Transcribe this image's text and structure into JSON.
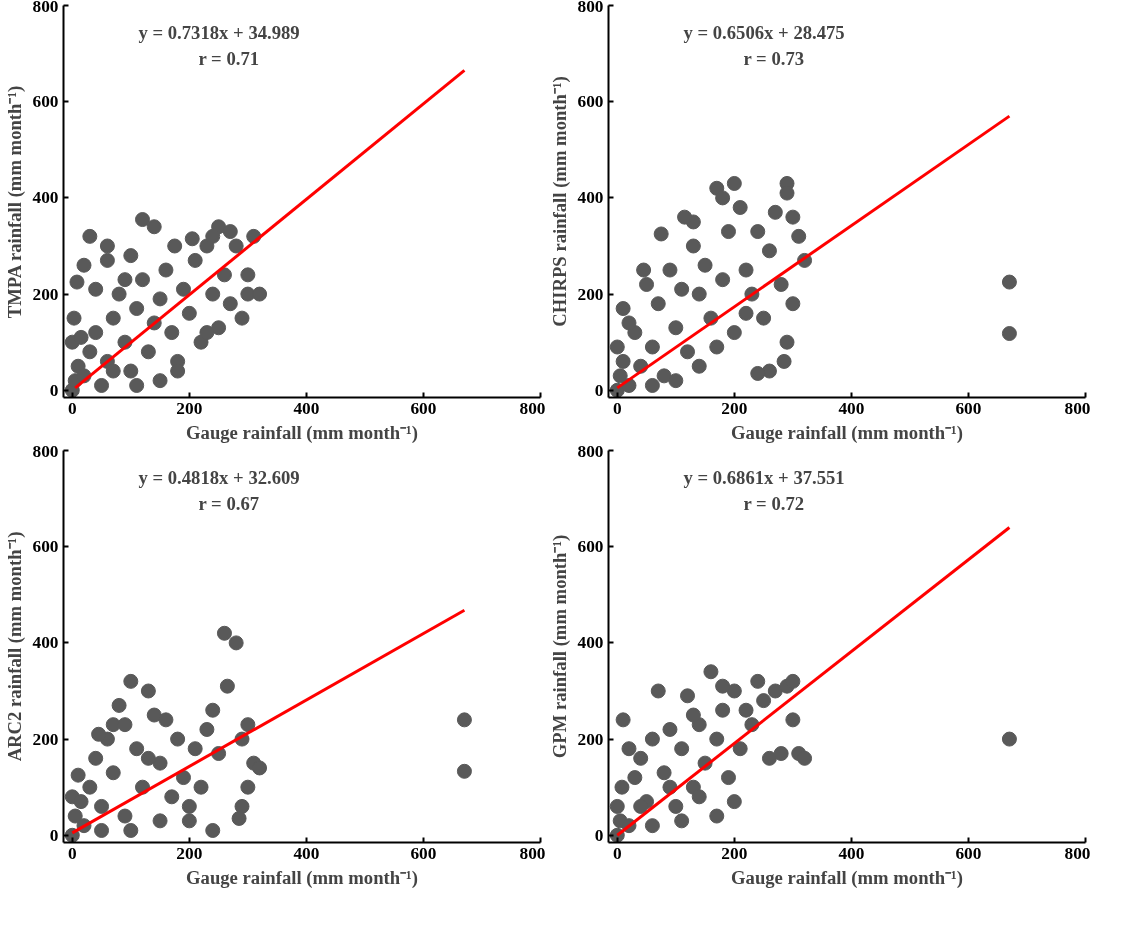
{
  "chart_data": [
    {
      "type": "scatter",
      "ylabel": "TMPA rainfall (mm month⁻¹)",
      "xlabel": "Gauge rainfall (mm month⁻¹)",
      "annotations": [
        "y = 0.7318x + 34.989",
        "r = 0.71"
      ],
      "xlim": [
        -15,
        800
      ],
      "ylim": [
        -15,
        800
      ],
      "xticks": [
        0,
        200,
        400,
        600,
        800
      ],
      "yticks": [
        0,
        200,
        400,
        600,
        800
      ],
      "grid": false,
      "series": [
        {
          "marker": "circle",
          "color": "#595959",
          "x": [
            0,
            5,
            10,
            0,
            3,
            8,
            20,
            30,
            40,
            50,
            60,
            70,
            80,
            90,
            100,
            110,
            120,
            130,
            140,
            150,
            160,
            170,
            180,
            190,
            200,
            210,
            220,
            230,
            240,
            250,
            260,
            270,
            280,
            290,
            300,
            310,
            320,
            300,
            250,
            270,
            120,
            140,
            30,
            60,
            20,
            40,
            180,
            150,
            100,
            90,
            205,
            240,
            230,
            175,
            60,
            15,
            70,
            110
          ],
          "values": [
            0,
            20,
            50,
            100,
            150,
            225,
            30,
            80,
            120,
            10,
            60,
            150,
            200,
            100,
            40,
            170,
            230,
            80,
            140,
            190,
            250,
            120,
            60,
            210,
            160,
            270,
            100,
            300,
            200,
            130,
            240,
            180,
            300,
            150,
            200,
            320,
            200,
            240,
            340,
            330,
            355,
            340,
            320,
            300,
            260,
            210,
            40,
            20,
            280,
            230,
            315,
            320,
            120,
            300,
            270,
            110,
            40,
            10
          ]
        },
        {
          "type": "line",
          "color": "#ff0000",
          "x": [
            5,
            670
          ],
          "values": [
            5,
            665
          ]
        }
      ]
    },
    {
      "type": "scatter",
      "ylabel": "CHIRPS rainfall (mm month⁻¹)",
      "xlabel": "Gauge rainfall (mm month⁻¹)",
      "annotations": [
        "y = 0.6506x + 28.475",
        "r = 0.73"
      ],
      "xlim": [
        -15,
        800
      ],
      "ylim": [
        -15,
        800
      ],
      "xticks": [
        0,
        200,
        400,
        600,
        800
      ],
      "yticks": [
        0,
        200,
        400,
        600,
        800
      ],
      "grid": false,
      "series": [
        {
          "marker": "circle",
          "color": "#595959",
          "x": [
            0,
            5,
            10,
            0,
            10,
            20,
            30,
            40,
            50,
            60,
            70,
            80,
            90,
            100,
            110,
            120,
            130,
            140,
            150,
            160,
            170,
            180,
            190,
            200,
            210,
            220,
            230,
            240,
            250,
            260,
            270,
            280,
            290,
            290,
            300,
            310,
            320,
            300,
            290,
            285,
            260,
            240,
            200,
            170,
            140,
            100,
            60,
            130,
            115,
            20,
            45,
            75,
            670,
            670,
            220,
            180
          ],
          "values": [
            0,
            30,
            60,
            90,
            170,
            10,
            120,
            50,
            220,
            90,
            180,
            30,
            250,
            130,
            210,
            80,
            350,
            200,
            260,
            150,
            420,
            400,
            330,
            430,
            380,
            250,
            200,
            330,
            150,
            290,
            370,
            220,
            430,
            410,
            360,
            320,
            270,
            180,
            100,
            60,
            40,
            35,
            120,
            90,
            50,
            20,
            10,
            300,
            360,
            140,
            250,
            325,
            225,
            118,
            160,
            230
          ]
        },
        {
          "type": "line",
          "color": "#ff0000",
          "x": [
            0,
            670
          ],
          "values": [
            5,
            570
          ]
        }
      ]
    },
    {
      "type": "scatter",
      "ylabel": "ARC2 rainfall (mm month⁻¹)",
      "xlabel": "Gauge rainfall (mm month⁻¹)",
      "annotations": [
        "y = 0.4818x + 32.609",
        "r = 0.67"
      ],
      "xlim": [
        -15,
        800
      ],
      "ylim": [
        -15,
        800
      ],
      "xticks": [
        0,
        200,
        400,
        600,
        800
      ],
      "yticks": [
        0,
        200,
        400,
        600,
        800
      ],
      "grid": false,
      "series": [
        {
          "marker": "circle",
          "color": "#595959",
          "x": [
            0,
            5,
            0,
            10,
            20,
            30,
            40,
            50,
            60,
            70,
            80,
            90,
            100,
            110,
            120,
            130,
            140,
            150,
            160,
            170,
            180,
            190,
            200,
            210,
            220,
            230,
            240,
            250,
            260,
            280,
            265,
            290,
            300,
            310,
            320,
            300,
            290,
            285,
            240,
            200,
            150,
            100,
            50,
            70,
            45,
            670,
            670,
            130,
            90,
            15
          ],
          "values": [
            0,
            40,
            80,
            125,
            20,
            100,
            160,
            60,
            200,
            130,
            270,
            40,
            320,
            180,
            100,
            300,
            250,
            150,
            240,
            80,
            200,
            120,
            60,
            180,
            100,
            220,
            260,
            170,
            420,
            400,
            310,
            200,
            230,
            150,
            140,
            100,
            60,
            35,
            10,
            30,
            30,
            10,
            10,
            230,
            210,
            240,
            133,
            160,
            230,
            70
          ]
        },
        {
          "type": "line",
          "color": "#ff0000",
          "x": [
            0,
            670
          ],
          "values": [
            5,
            468
          ]
        }
      ]
    },
    {
      "type": "scatter",
      "ylabel": "GPM rainfall (mm month⁻¹)",
      "xlabel": "Gauge rainfall (mm month⁻¹)",
      "annotations": [
        "y = 0.6861x + 37.551",
        "r = 0.72"
      ],
      "xlim": [
        -15,
        800
      ],
      "ylim": [
        -15,
        800
      ],
      "xticks": [
        0,
        200,
        400,
        600,
        800
      ],
      "yticks": [
        0,
        200,
        400,
        600,
        800
      ],
      "grid": false,
      "series": [
        {
          "marker": "circle",
          "color": "#595959",
          "x": [
            0,
            5,
            0,
            8,
            10,
            20,
            30,
            40,
            50,
            60,
            70,
            80,
            90,
            100,
            110,
            120,
            130,
            140,
            150,
            160,
            170,
            180,
            190,
            200,
            210,
            220,
            230,
            240,
            250,
            260,
            270,
            280,
            290,
            300,
            310,
            320,
            300,
            200,
            170,
            140,
            110,
            60,
            40,
            20,
            670,
            90,
            130,
            180
          ],
          "values": [
            0,
            30,
            60,
            100,
            240,
            20,
            120,
            160,
            70,
            200,
            300,
            130,
            220,
            60,
            180,
            290,
            100,
            230,
            150,
            340,
            200,
            260,
            120,
            300,
            180,
            260,
            230,
            320,
            280,
            160,
            300,
            170,
            310,
            320,
            170,
            160,
            240,
            70,
            40,
            80,
            30,
            20,
            60,
            180,
            200,
            100,
            250,
            310
          ]
        },
        {
          "type": "line",
          "color": "#ff0000",
          "x": [
            0,
            670
          ],
          "values": [
            0,
            640
          ]
        }
      ]
    }
  ]
}
